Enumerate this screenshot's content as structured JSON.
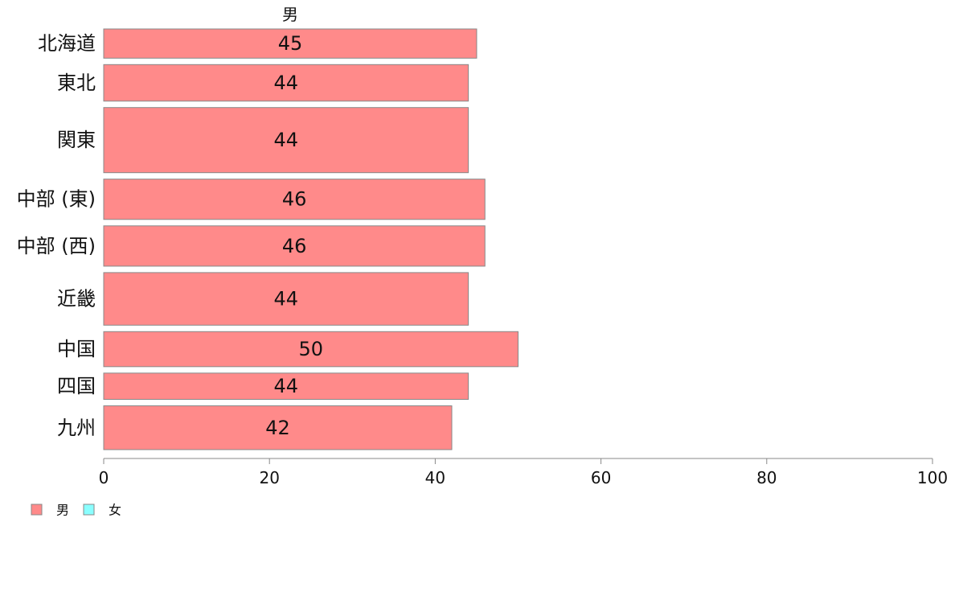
{
  "chart_data": {
    "type": "bar",
    "orientation": "horizontal",
    "series_header": "男",
    "categories": [
      "北海道",
      "東北",
      "関東",
      "中部 (東)",
      "中部 (西)",
      "近畿",
      "中国",
      "四国",
      "九州"
    ],
    "series": [
      {
        "name": "男",
        "values": [
          45,
          44,
          44,
          46,
          46,
          44,
          50,
          44,
          42
        ],
        "color": "#ff8a8a"
      }
    ],
    "bar_weights": [
      1.0,
      1.25,
      2.23,
      1.38,
      1.38,
      1.8,
      1.2,
      0.9,
      1.5
    ],
    "data_labels": [
      "45",
      "44",
      "44",
      "46",
      "46",
      "44",
      "50",
      "44",
      "42"
    ],
    "xlim": [
      0,
      100
    ],
    "x_ticks": [
      0,
      20,
      40,
      60,
      80,
      100
    ],
    "x_tick_labels": [
      "0",
      "20",
      "40",
      "60",
      "80",
      "100"
    ],
    "grid": false,
    "legend": {
      "position": "bottom-left",
      "entries": [
        {
          "label": "男",
          "color": "#ff8a8a"
        },
        {
          "label": "女",
          "color": "#8affff"
        }
      ]
    },
    "bar_stroke": "#888888"
  }
}
